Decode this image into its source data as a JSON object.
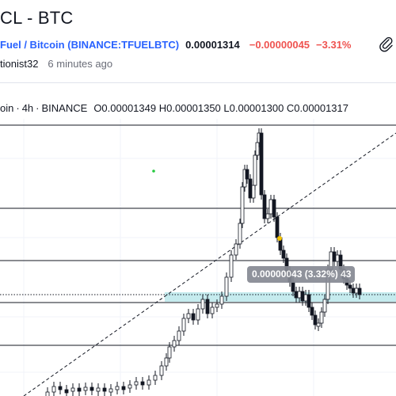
{
  "header": {
    "title": "CL - BTC",
    "pair_name": "Fuel / Bitcoin",
    "exchange_symbol": "(BINANCE:TFUELBTC)",
    "price": "0.00001314",
    "change": "−0.00000045",
    "change_pct": "−3.31%",
    "author": "tionist32",
    "time_ago": "6 minutes ago"
  },
  "legend": {
    "symbol": "oin",
    "interval": "4h",
    "exchange": "BINANCE",
    "ohlc": "O0.00001349 H0.00001350 L0.00001300 C0.00001317"
  },
  "tooltip": {
    "text": "0.00000043 (3.32%) 43"
  },
  "colors": {
    "link": "#2962ff",
    "negative": "#ef5350",
    "candle": "#131722",
    "zone": "#b2e4e8",
    "marker_dot": "#f5c400",
    "green_dot": "#26c940"
  },
  "chart_data": {
    "type": "candlestick",
    "series_description": "TFUEL/BTC 4h candles"
  }
}
